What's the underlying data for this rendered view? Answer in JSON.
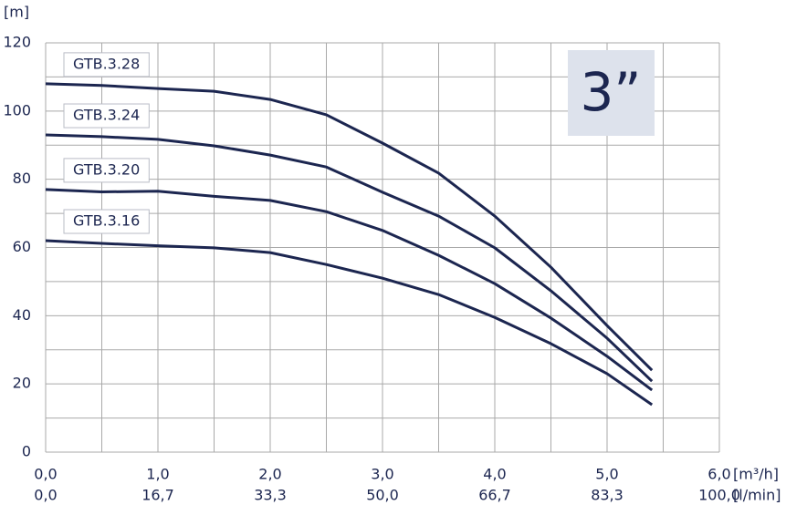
{
  "chart_data": {
    "type": "line",
    "ylabel": "[m]",
    "xlabel": "[m³/h]",
    "x2label": "[l/min]",
    "annotation": "3”",
    "x": [
      0,
      0.5,
      1.0,
      1.5,
      2.0,
      2.5,
      3.0,
      3.5,
      4.0,
      4.5,
      5.0,
      5.4
    ],
    "series": [
      {
        "name": "GTB.3.28",
        "color": "#1c2650",
        "values": [
          108,
          107.5,
          106.6,
          105.8,
          103.4,
          98.9,
          90.6,
          81.8,
          69.2,
          54.2,
          37.1,
          24
        ]
      },
      {
        "name": "GTB.3.24",
        "color": "#1c2650",
        "values": [
          93,
          92.5,
          91.7,
          89.8,
          87.1,
          83.6,
          76.2,
          69.2,
          59.9,
          47.3,
          33.4,
          20.8
        ]
      },
      {
        "name": "GTB.3.20",
        "color": "#1c2650",
        "values": [
          77,
          76.3,
          76.5,
          75,
          73.8,
          70.5,
          65,
          57.7,
          49.4,
          39.3,
          28.1,
          18.2
        ]
      },
      {
        "name": "GTB.3.16",
        "color": "#1c2650",
        "values": [
          62,
          61.2,
          60.5,
          59.9,
          58.5,
          55,
          51,
          46.2,
          39.5,
          31.8,
          23,
          13.9
        ]
      }
    ],
    "xlim": [
      0,
      6
    ],
    "ylim": [
      0,
      120
    ],
    "xticks": [
      {
        "value": 0,
        "label": "0,0"
      },
      {
        "value": 1,
        "label": "1,0"
      },
      {
        "value": 2,
        "label": "2,0"
      },
      {
        "value": 3,
        "label": "3,0"
      },
      {
        "value": 4,
        "label": "4,0"
      },
      {
        "value": 5,
        "label": "5,0"
      },
      {
        "value": 6,
        "label": "6,0"
      }
    ],
    "x2ticklabels": [
      "0,0",
      "16,7",
      "33,3",
      "50,0",
      "66,7",
      "83,3",
      "100,0"
    ],
    "yticks": [
      0,
      20,
      40,
      60,
      80,
      100,
      120
    ],
    "xminorticks": [
      0.5,
      1.5,
      2.5,
      3.5,
      4.5,
      5.5
    ],
    "yminorticks": [
      10,
      30,
      50,
      70,
      90,
      110
    ],
    "grid": true
  }
}
